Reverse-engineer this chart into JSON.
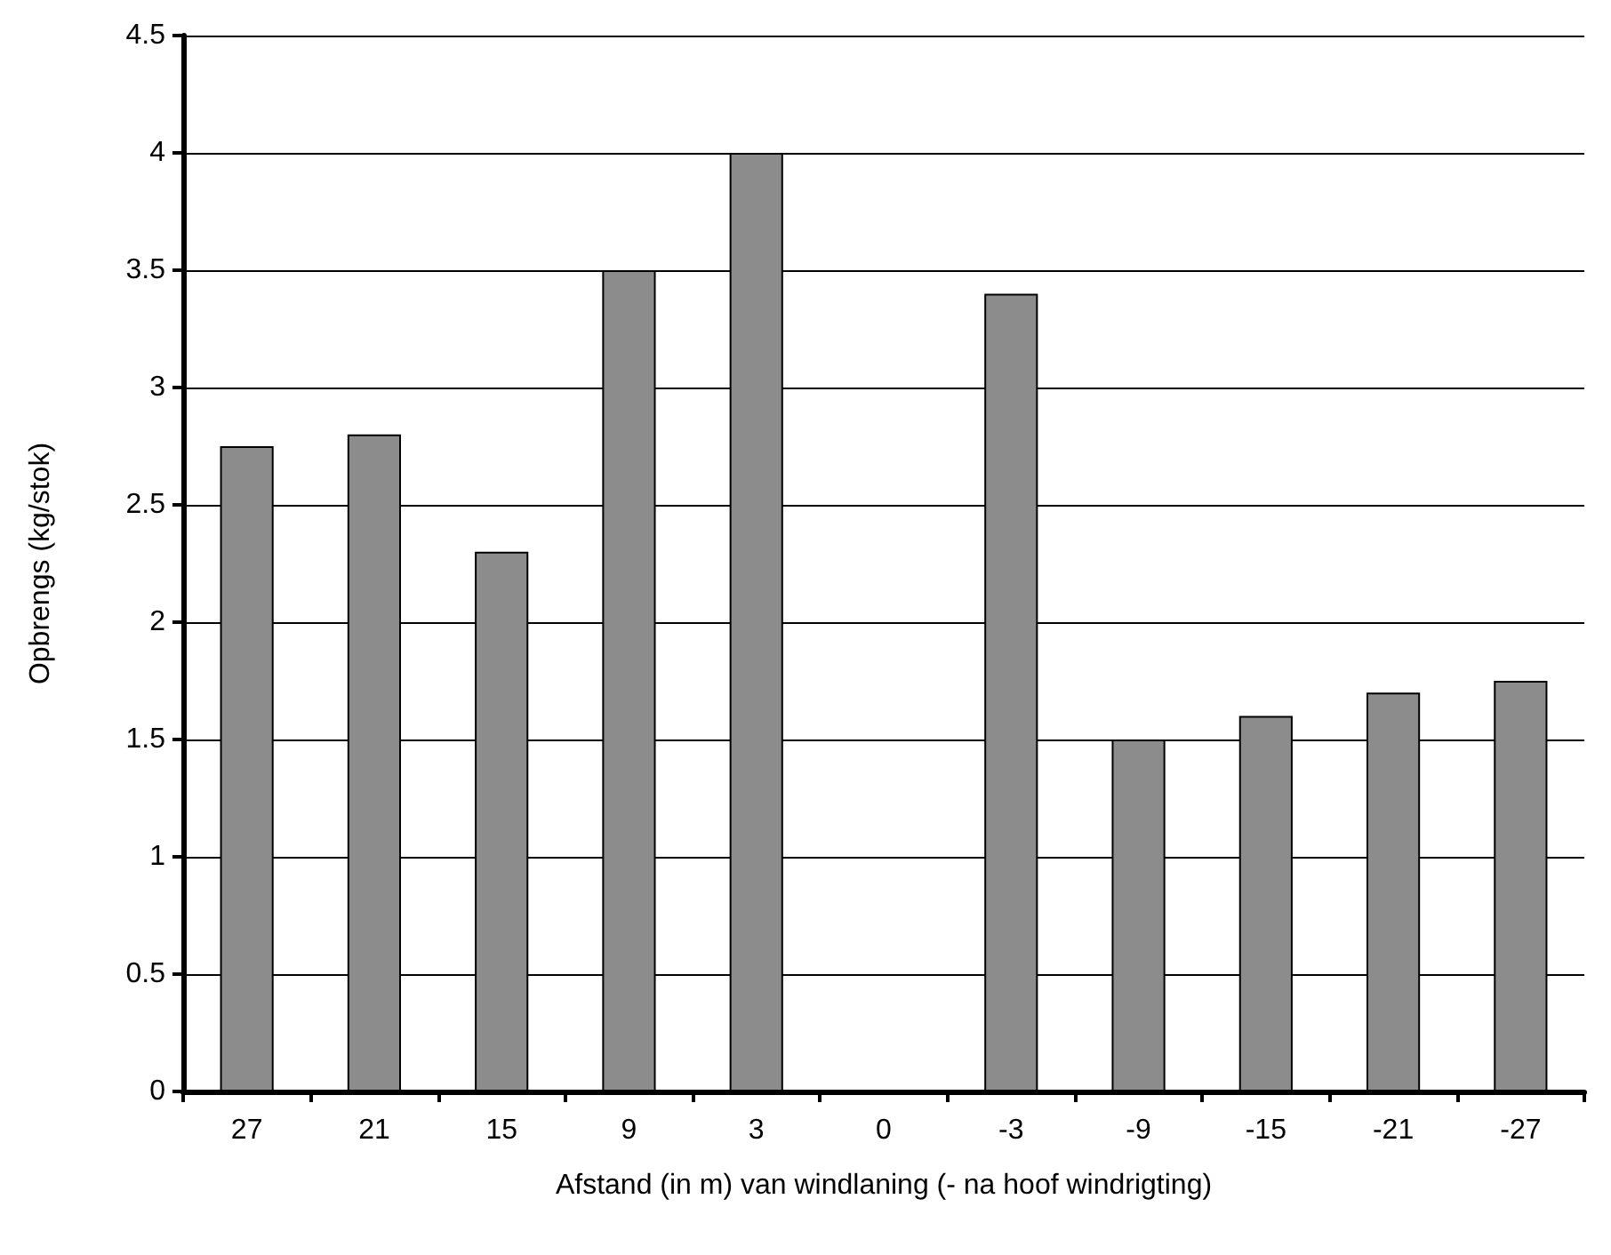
{
  "chart_data": {
    "type": "bar",
    "xlabel": "Afstand (in m) van windlaning (- na hoof windrigting)",
    "ylabel": "Opbrengs (kg/stok)",
    "categories": [
      "27",
      "21",
      "15",
      "9",
      "3",
      "0",
      "-3",
      "-9",
      "-15",
      "-21",
      "-27"
    ],
    "values": [
      2.75,
      2.8,
      2.3,
      3.5,
      4.0,
      null,
      3.4,
      1.5,
      1.6,
      1.7,
      1.75
    ],
    "color": "#8c8c8c",
    "ylim": [
      0,
      4.5
    ],
    "yticks": [
      0,
      0.5,
      1,
      1.5,
      2,
      2.5,
      3,
      3.5,
      4,
      4.5
    ],
    "grid": "y"
  }
}
